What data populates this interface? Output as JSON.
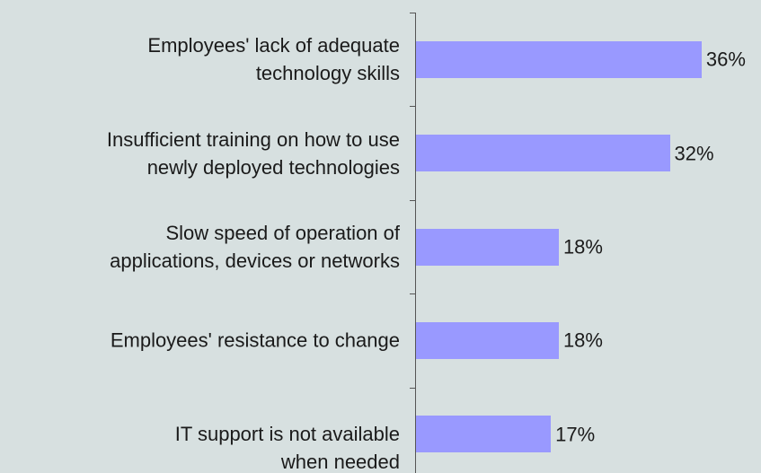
{
  "chart_data": {
    "type": "bar",
    "orientation": "horizontal",
    "categories": [
      "Employees' lack of adequate\ntechnology skills",
      "Insufficient training on how to use\nnewly deployed technologies",
      "Slow speed of operation of\napplications, devices or networks",
      "Employees' resistance to change",
      "IT support is not available\nwhen needed"
    ],
    "values": [
      36,
      32,
      18,
      18,
      17
    ],
    "value_labels": [
      "36%",
      "32%",
      "18%",
      "18%",
      "17%"
    ],
    "color": "#9999ff"
  }
}
